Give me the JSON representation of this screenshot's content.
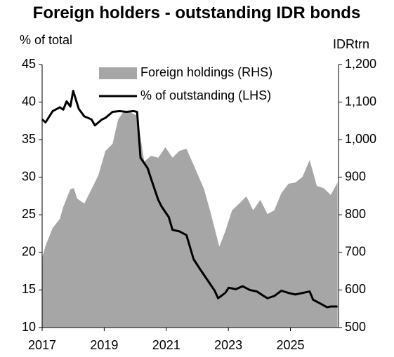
{
  "chart_data": {
    "type": "area_line",
    "title": "Foreign holders - outstanding IDR bonds",
    "ylabel": "% of total",
    "y2label": "IDRtrn",
    "xlim": [
      2017,
      2026.55
    ],
    "xticks": [
      2017,
      2019,
      2021,
      2023,
      2025
    ],
    "ylim": [
      10,
      45
    ],
    "yticks": [
      10,
      15,
      20,
      25,
      30,
      35,
      40,
      45
    ],
    "y2lim": [
      500,
      1200
    ],
    "y2ticks": [
      500,
      600,
      700,
      800,
      900,
      {
        "value": 1000,
        "label": "1,000"
      },
      {
        "value": 1100,
        "label": "1,100"
      },
      {
        "value": 1200,
        "label": "1,200"
      }
    ],
    "legend": "top",
    "series": [
      {
        "name": "Foreign holdings (RHS)",
        "kind": "area",
        "axis": "y2",
        "color": "#a6a6a6",
        "x": [
          2017.0,
          2017.11,
          2017.34,
          2017.57,
          2017.68,
          2017.91,
          2018.02,
          2018.13,
          2018.36,
          2018.59,
          2018.81,
          2019.04,
          2019.27,
          2019.45,
          2019.61,
          2019.83,
          2020.06,
          2020.29,
          2020.51,
          2020.74,
          2020.97,
          2021.2,
          2021.42,
          2021.65,
          2021.88,
          2022.22,
          2022.44,
          2022.71,
          2022.9,
          2023.12,
          2023.35,
          2023.58,
          2023.8,
          2024.03,
          2024.26,
          2024.48,
          2024.71,
          2024.94,
          2025.16,
          2025.39,
          2025.62,
          2025.85,
          2026.07,
          2026.3,
          2026.52
        ],
        "values": [
          685,
          718,
          765,
          789,
          821,
          868,
          871,
          843,
          830,
          868,
          905,
          970,
          989,
          1054,
          1073,
          1073,
          1064,
          942,
          957,
          952,
          980,
          952,
          970,
          976,
          933,
          868,
          802,
          715,
          756,
          812,
          830,
          849,
          812,
          840,
          802,
          812,
          858,
          883,
          886,
          901,
          946,
          877,
          871,
          853,
          886
        ]
      },
      {
        "name": "% of outstanding (LHS)",
        "kind": "line",
        "axis": "y",
        "color": "#000000",
        "x": [
          2017.0,
          2017.11,
          2017.34,
          2017.57,
          2017.68,
          2017.79,
          2017.91,
          2018.0,
          2018.18,
          2018.36,
          2018.59,
          2018.7,
          2018.93,
          2019.04,
          2019.27,
          2019.5,
          2019.72,
          2019.95,
          2020.06,
          2020.17,
          2020.4,
          2020.51,
          2020.74,
          2020.85,
          2021.08,
          2021.2,
          2021.42,
          2021.65,
          2021.88,
          2022.1,
          2022.33,
          2022.56,
          2022.67,
          2022.9,
          2023.01,
          2023.24,
          2023.46,
          2023.69,
          2023.92,
          2024.14,
          2024.26,
          2024.48,
          2024.71,
          2024.94,
          2025.16,
          2025.39,
          2025.62,
          2025.73,
          2025.96,
          2026.18,
          2026.3,
          2026.52
        ],
        "values": [
          37.7,
          37.3,
          38.8,
          39.3,
          39.0,
          40.1,
          39.4,
          41.5,
          39.1,
          38.1,
          37.7,
          36.9,
          37.7,
          37.9,
          38.7,
          38.8,
          38.7,
          38.8,
          38.7,
          32.6,
          31.2,
          29.8,
          27.0,
          26.1,
          24.7,
          23.0,
          22.8,
          22.3,
          19.1,
          17.7,
          16.3,
          14.9,
          13.9,
          14.6,
          15.3,
          15.1,
          15.5,
          15.0,
          14.8,
          14.2,
          13.9,
          14.2,
          14.9,
          14.6,
          14.4,
          14.6,
          14.8,
          13.7,
          13.2,
          12.7,
          12.8,
          12.8
        ]
      }
    ]
  }
}
